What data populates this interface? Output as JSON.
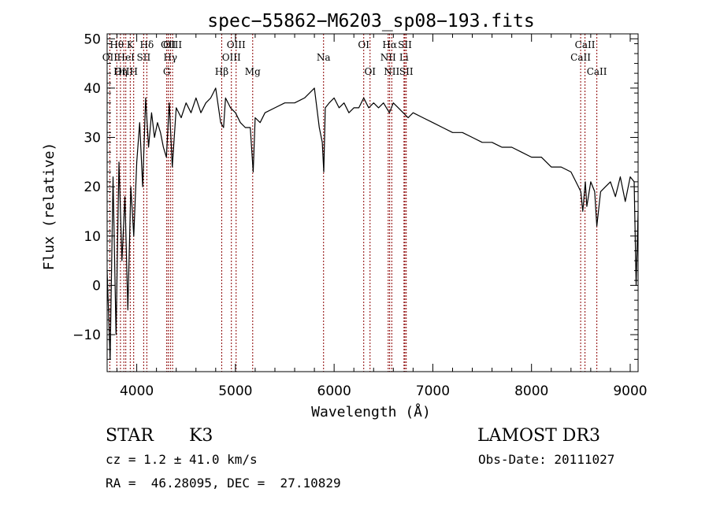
{
  "chart_data": {
    "type": "line",
    "title": "spec−55862−M6203_sp08−193.fits",
    "xlabel": "Wavelength (Å)",
    "ylabel": "Flux (relative)",
    "xlim": [
      3700,
      9080
    ],
    "ylim": [
      -17.5,
      51
    ],
    "x_ticks": [
      4000,
      5000,
      6000,
      7000,
      8000,
      9000
    ],
    "y_ticks": [
      -10,
      0,
      10,
      20,
      30,
      40,
      50
    ],
    "y_tick_labels": [
      "−10",
      "0",
      "10",
      "20",
      "30",
      "40",
      "50"
    ],
    "series": [
      {
        "name": "spectrum",
        "color": "#000000",
        "x": [
          3700,
          3730,
          3760,
          3790,
          3820,
          3850,
          3880,
          3910,
          3940,
          3970,
          4000,
          4030,
          4060,
          4090,
          4120,
          4150,
          4180,
          4210,
          4240,
          4270,
          4300,
          4330,
          4360,
          4400,
          4450,
          4500,
          4550,
          4600,
          4650,
          4700,
          4750,
          4800,
          4850,
          4880,
          4900,
          4950,
          5000,
          5050,
          5100,
          5150,
          5180,
          5200,
          5250,
          5300,
          5400,
          5500,
          5600,
          5700,
          5800,
          5850,
          5880,
          5895,
          5910,
          5950,
          6000,
          6050,
          6100,
          6150,
          6200,
          6250,
          6300,
          6350,
          6400,
          6450,
          6500,
          6560,
          6600,
          6650,
          6700,
          6750,
          6800,
          6900,
          7000,
          7100,
          7200,
          7300,
          7400,
          7500,
          7600,
          7700,
          7800,
          7900,
          8000,
          8100,
          8200,
          8300,
          8400,
          8450,
          8500,
          8520,
          8545,
          8560,
          8600,
          8640,
          8662,
          8700,
          8750,
          8800,
          8850,
          8900,
          8950,
          9000,
          9040,
          9060,
          9080
        ],
        "y": [
          3,
          -15,
          22,
          -10,
          25,
          5,
          18,
          -5,
          20,
          10,
          25,
          33,
          20,
          38,
          28,
          35,
          30,
          33,
          31,
          28,
          26,
          37,
          24,
          36,
          34,
          37,
          35,
          38,
          35,
          37,
          38,
          40,
          33,
          32,
          38,
          36,
          35,
          33,
          32,
          32,
          23,
          34,
          33,
          35,
          36,
          37,
          37,
          38,
          40,
          32,
          29,
          23,
          36,
          37,
          38,
          36,
          37,
          35,
          36,
          36,
          38,
          36,
          37,
          36,
          37,
          35,
          37,
          36,
          35,
          34,
          35,
          34,
          33,
          32,
          31,
          31,
          30,
          29,
          29,
          28,
          28,
          27,
          26,
          26,
          24,
          24,
          23,
          21,
          19,
          15,
          21,
          16,
          21,
          19,
          12,
          19,
          20,
          21,
          18,
          22,
          17,
          22,
          21,
          0,
          15
        ]
      }
    ],
    "lines": [
      {
        "label": "Hθ",
        "x": 3798,
        "row": 1
      },
      {
        "label": "OII",
        "x": 3727,
        "row": 2
      },
      {
        "label": "OIII",
        "x": 3869,
        "row": 3
      },
      {
        "label": "K",
        "x": 3934,
        "row": 1
      },
      {
        "label": "H",
        "x": 3969,
        "row": 3
      },
      {
        "label": "HeI",
        "x": 3889,
        "row": 2
      },
      {
        "label": "Hη",
        "x": 3835,
        "row": 3
      },
      {
        "label": "SII",
        "x": 4070,
        "row": 2
      },
      {
        "label": "Hδ",
        "x": 4102,
        "row": 1
      },
      {
        "label": "OII",
        "x": 4320,
        "row": 1
      },
      {
        "label": "Hγ",
        "x": 4341,
        "row": 2
      },
      {
        "label": "G",
        "x": 4304,
        "row": 3
      },
      {
        "label": "OIII",
        "x": 4363,
        "row": 1
      },
      {
        "label": "Hβ",
        "x": 4861,
        "row": 3
      },
      {
        "label": "OIII",
        "x": 5007,
        "row": 1
      },
      {
        "label": "OIII",
        "x": 4959,
        "row": 2
      },
      {
        "label": "Mg",
        "x": 5175,
        "row": 3
      },
      {
        "label": "Na",
        "x": 5893,
        "row": 2
      },
      {
        "label": "OI",
        "x": 6300,
        "row": 1
      },
      {
        "label": "OI",
        "x": 6364,
        "row": 3
      },
      {
        "label": "Hα",
        "x": 6563,
        "row": 1
      },
      {
        "label": "NII",
        "x": 6548,
        "row": 2
      },
      {
        "label": "NII",
        "x": 6584,
        "row": 3
      },
      {
        "label": "SII",
        "x": 6717,
        "row": 1
      },
      {
        "label": "Li",
        "x": 6708,
        "row": 2
      },
      {
        "label": "SII",
        "x": 6731,
        "row": 3
      },
      {
        "label": "CaII",
        "x": 8542,
        "row": 1
      },
      {
        "label": "CaII",
        "x": 8498,
        "row": 2
      },
      {
        "label": "CaII",
        "x": 8662,
        "row": 3
      }
    ],
    "line_color": "#8b0000",
    "grid": false,
    "legend": "none"
  },
  "footer": {
    "object_class": "STAR",
    "subclass": "K3",
    "survey": "LAMOST DR3",
    "redshift": "cz = 1.2 ± 41.0 km/s",
    "obs_date": "Obs-Date: 20111027",
    "coords": "RA =  46.28095, DEC =  27.10829"
  }
}
